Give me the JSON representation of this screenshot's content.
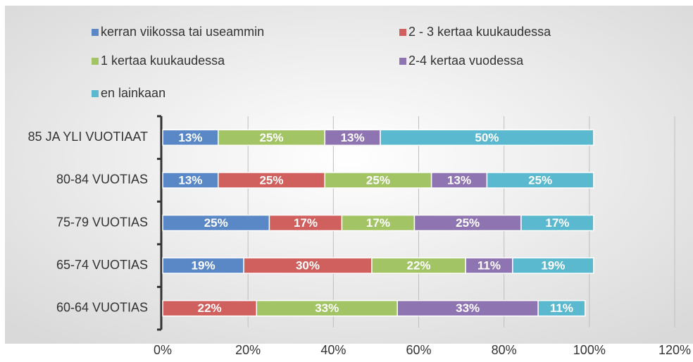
{
  "chart_data": {
    "type": "stacked-bar-horizontal",
    "categories": [
      "85 JA YLI VUOTIAAT",
      "80-84 VUOTIAS",
      "75-79 VUOTIAS",
      "65-74 VUOTIAS",
      "60-64 VUOTIAS"
    ],
    "series": [
      {
        "name": "kerran viikossa tai useammin",
        "color": "#5a88c6",
        "values": [
          13,
          13,
          25,
          19,
          null
        ],
        "value_labels": [
          "13%",
          "13%",
          "25%",
          "19%",
          null
        ]
      },
      {
        "name": "2 - 3 kertaa kuukaudessa",
        "color": "#cf605d",
        "values": [
          null,
          25,
          17,
          30,
          22
        ],
        "value_labels": [
          null,
          "25%",
          "17%",
          "30%",
          "22%"
        ]
      },
      {
        "name": "1 kertaa kuukaudessa",
        "color": "#a2c465",
        "values": [
          25,
          25,
          17,
          22,
          33
        ],
        "value_labels": [
          "25%",
          "25%",
          "17%",
          "22%",
          "33%"
        ]
      },
      {
        "name": "2-4 kertaa vuodessa",
        "color": "#8e74b0",
        "values": [
          13,
          13,
          25,
          11,
          33
        ],
        "value_labels": [
          "13%",
          "13%",
          "25%",
          "11%",
          "33%"
        ]
      },
      {
        "name": "en lainkaan",
        "color": "#5ab8cf",
        "values": [
          50,
          25,
          17,
          19,
          11
        ],
        "value_labels": [
          "50%",
          "25%",
          "17%",
          "19%",
          "11%"
        ]
      }
    ],
    "xlim": [
      0,
      120
    ],
    "xticks": [
      {
        "value": 0,
        "label": "0%"
      },
      {
        "value": 20,
        "label": "20%"
      },
      {
        "value": 40,
        "label": "40%"
      },
      {
        "value": 60,
        "label": "60%"
      },
      {
        "value": 80,
        "label": "80%"
      },
      {
        "value": 100,
        "label": "100%"
      },
      {
        "value": 120,
        "label": "120%"
      }
    ],
    "grid": true
  }
}
